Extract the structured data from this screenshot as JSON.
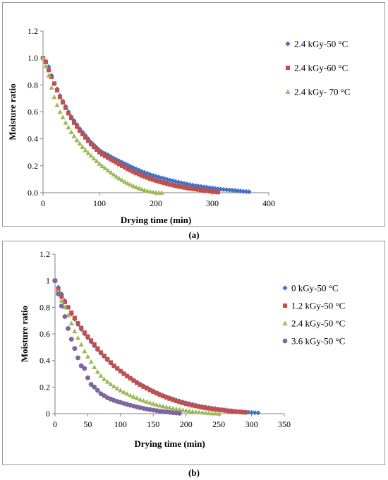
{
  "chart_data": [
    {
      "id": "a",
      "type": "scatter",
      "caption": "(a)",
      "xlabel": "Drying time (min)",
      "ylabel": "Moisture ratio",
      "xlim": [
        0,
        400
      ],
      "ylim": [
        0,
        1.2
      ],
      "xticks": [
        "0",
        "100",
        "200",
        "300",
        "400"
      ],
      "yticks": [
        "0.0",
        "0.2",
        "0.4",
        "0.6",
        "0.8",
        "1.0",
        "1.2"
      ],
      "grid": false,
      "legend_position": "top-right",
      "series": [
        {
          "name": "2.4 kGy-50 °C",
          "marker": "diamond",
          "color": "#4472c4",
          "x": [
            0,
            5,
            10,
            15,
            20,
            25,
            30,
            35,
            40,
            45,
            50,
            55,
            60,
            65,
            70,
            75,
            80,
            85,
            90,
            95,
            100,
            105,
            110,
            115,
            120,
            125,
            130,
            135,
            140,
            145,
            150,
            155,
            160,
            165,
            170,
            175,
            180,
            185,
            190,
            195,
            200,
            205,
            210,
            215,
            220,
            225,
            230,
            235,
            240,
            245,
            250,
            255,
            260,
            265,
            270,
            275,
            280,
            285,
            290,
            295,
            300,
            305,
            310,
            315,
            320,
            325,
            330,
            335,
            340,
            345,
            350,
            355,
            360,
            365
          ],
          "y": [
            1.0,
            0.975,
            0.935,
            0.87,
            0.81,
            0.77,
            0.72,
            0.68,
            0.64,
            0.6,
            0.565,
            0.535,
            0.505,
            0.475,
            0.45,
            0.425,
            0.4,
            0.375,
            0.355,
            0.335,
            0.315,
            0.3,
            0.29,
            0.28,
            0.268,
            0.256,
            0.245,
            0.235,
            0.225,
            0.215,
            0.205,
            0.195,
            0.185,
            0.176,
            0.167,
            0.158,
            0.15,
            0.142,
            0.135,
            0.128,
            0.122,
            0.116,
            0.11,
            0.104,
            0.098,
            0.093,
            0.088,
            0.083,
            0.078,
            0.073,
            0.068,
            0.064,
            0.06,
            0.056,
            0.052,
            0.049,
            0.046,
            0.043,
            0.04,
            0.037,
            0.034,
            0.031,
            0.028,
            0.026,
            0.024,
            0.022,
            0.02,
            0.018,
            0.016,
            0.014,
            0.012,
            0.01,
            0.008,
            0.007
          ]
        },
        {
          "name": "2.4 kGy-60 °C",
          "marker": "square",
          "color": "#c0504d",
          "x": [
            0,
            5,
            10,
            15,
            20,
            25,
            30,
            35,
            40,
            45,
            50,
            55,
            60,
            65,
            70,
            75,
            80,
            85,
            90,
            95,
            100,
            105,
            110,
            115,
            120,
            125,
            130,
            135,
            140,
            145,
            150,
            155,
            160,
            165,
            170,
            175,
            180,
            185,
            190,
            195,
            200,
            205,
            210,
            215,
            220,
            225,
            230,
            235,
            240,
            245,
            250,
            255,
            260,
            265,
            270,
            275,
            280,
            285,
            290,
            295,
            300,
            305,
            310
          ],
          "y": [
            1.0,
            0.97,
            0.91,
            0.86,
            0.81,
            0.76,
            0.71,
            0.67,
            0.63,
            0.59,
            0.555,
            0.52,
            0.49,
            0.46,
            0.435,
            0.41,
            0.385,
            0.36,
            0.34,
            0.32,
            0.3,
            0.285,
            0.272,
            0.26,
            0.248,
            0.236,
            0.224,
            0.212,
            0.2,
            0.188,
            0.177,
            0.166,
            0.156,
            0.146,
            0.137,
            0.128,
            0.12,
            0.112,
            0.104,
            0.097,
            0.09,
            0.084,
            0.078,
            0.072,
            0.066,
            0.061,
            0.056,
            0.051,
            0.047,
            0.043,
            0.039,
            0.035,
            0.032,
            0.029,
            0.026,
            0.023,
            0.02,
            0.017,
            0.014,
            0.011,
            0.008,
            0.006,
            0.004
          ]
        },
        {
          "name": "2.4 kGy- 70 °C",
          "marker": "triangle",
          "color": "#9bbb59",
          "x": [
            0,
            5,
            10,
            15,
            20,
            25,
            30,
            35,
            40,
            45,
            50,
            55,
            60,
            65,
            70,
            75,
            80,
            85,
            90,
            95,
            100,
            105,
            110,
            115,
            120,
            125,
            130,
            135,
            140,
            145,
            150,
            155,
            160,
            165,
            170,
            175,
            180,
            185,
            190,
            195,
            200,
            205,
            210
          ],
          "y": [
            1.0,
            0.94,
            0.87,
            0.78,
            0.71,
            0.65,
            0.6,
            0.56,
            0.52,
            0.485,
            0.45,
            0.42,
            0.39,
            0.365,
            0.34,
            0.315,
            0.295,
            0.275,
            0.255,
            0.235,
            0.215,
            0.198,
            0.182,
            0.166,
            0.15,
            0.135,
            0.12,
            0.106,
            0.093,
            0.081,
            0.07,
            0.06,
            0.05,
            0.041,
            0.033,
            0.026,
            0.02,
            0.014,
            0.009,
            0.005,
            0.002,
            0.001,
            0.0
          ]
        }
      ]
    },
    {
      "id": "b",
      "type": "scatter",
      "caption": "(b)",
      "xlabel": "Drying time (min)",
      "ylabel": "Moisture ratio",
      "xlim": [
        0,
        350
      ],
      "ylim": [
        0,
        1.2
      ],
      "xticks": [
        "0",
        "50",
        "100",
        "150",
        "200",
        "250",
        "300",
        "350"
      ],
      "yticks": [
        "0",
        "0.2",
        "0.4",
        "0.6",
        "0.8",
        "1",
        "1.2"
      ],
      "grid": false,
      "legend_position": "top-right",
      "series": [
        {
          "name": "0 kGy-50 °C",
          "marker": "diamond",
          "color": "#4472c4",
          "x": [
            0,
            5,
            10,
            15,
            20,
            25,
            30,
            35,
            40,
            45,
            50,
            55,
            60,
            65,
            70,
            75,
            80,
            85,
            90,
            95,
            100,
            105,
            110,
            115,
            120,
            125,
            130,
            135,
            140,
            145,
            150,
            155,
            160,
            165,
            170,
            175,
            180,
            185,
            190,
            195,
            200,
            205,
            210,
            215,
            220,
            225,
            230,
            235,
            240,
            245,
            250,
            255,
            260,
            265,
            270,
            275,
            280,
            285,
            290,
            295,
            300,
            305,
            310
          ],
          "y": [
            1.0,
            0.95,
            0.9,
            0.85,
            0.8,
            0.75,
            0.71,
            0.67,
            0.635,
            0.6,
            0.57,
            0.54,
            0.51,
            0.48,
            0.455,
            0.43,
            0.405,
            0.38,
            0.36,
            0.34,
            0.32,
            0.302,
            0.285,
            0.268,
            0.252,
            0.237,
            0.222,
            0.208,
            0.195,
            0.182,
            0.17,
            0.158,
            0.147,
            0.137,
            0.127,
            0.118,
            0.11,
            0.102,
            0.095,
            0.088,
            0.081,
            0.075,
            0.069,
            0.063,
            0.058,
            0.053,
            0.049,
            0.045,
            0.041,
            0.037,
            0.034,
            0.031,
            0.028,
            0.025,
            0.022,
            0.019,
            0.017,
            0.015,
            0.013,
            0.011,
            0.009,
            0.007,
            0.006
          ]
        },
        {
          "name": "1.2 kGy-50 °C",
          "marker": "square",
          "color": "#c0504d",
          "x": [
            0,
            5,
            10,
            15,
            20,
            25,
            30,
            35,
            40,
            45,
            50,
            55,
            60,
            65,
            70,
            75,
            80,
            85,
            90,
            95,
            100,
            105,
            110,
            115,
            120,
            125,
            130,
            135,
            140,
            145,
            150,
            155,
            160,
            165,
            170,
            175,
            180,
            185,
            190,
            195,
            200,
            205,
            210,
            215,
            220,
            225,
            230,
            235,
            240,
            245,
            250,
            255,
            260,
            265,
            270,
            275,
            280,
            285,
            290
          ],
          "y": [
            1.0,
            0.93,
            0.88,
            0.84,
            0.8,
            0.76,
            0.72,
            0.68,
            0.645,
            0.61,
            0.58,
            0.55,
            0.52,
            0.49,
            0.46,
            0.435,
            0.41,
            0.385,
            0.36,
            0.34,
            0.32,
            0.3,
            0.282,
            0.265,
            0.248,
            0.232,
            0.217,
            0.203,
            0.19,
            0.177,
            0.165,
            0.153,
            0.142,
            0.132,
            0.122,
            0.113,
            0.104,
            0.096,
            0.088,
            0.081,
            0.074,
            0.068,
            0.062,
            0.057,
            0.052,
            0.047,
            0.043,
            0.039,
            0.035,
            0.032,
            0.029,
            0.026,
            0.023,
            0.02,
            0.017,
            0.015,
            0.013,
            0.011,
            0.009
          ]
        },
        {
          "name": "2.4 kGy-50 °C",
          "marker": "triangle",
          "color": "#9bbb59",
          "x": [
            0,
            5,
            10,
            15,
            20,
            25,
            30,
            35,
            40,
            45,
            50,
            55,
            60,
            65,
            70,
            75,
            80,
            85,
            90,
            95,
            100,
            105,
            110,
            115,
            120,
            125,
            130,
            135,
            140,
            145,
            150,
            155,
            160,
            165,
            170,
            175,
            180,
            185,
            190,
            195,
            200,
            205,
            210,
            215,
            220,
            225,
            230,
            235,
            240,
            245,
            250
          ],
          "y": [
            1.0,
            0.92,
            0.85,
            0.8,
            0.74,
            0.68,
            0.62,
            0.57,
            0.52,
            0.47,
            0.43,
            0.39,
            0.35,
            0.315,
            0.285,
            0.26,
            0.24,
            0.222,
            0.205,
            0.19,
            0.175,
            0.162,
            0.15,
            0.138,
            0.127,
            0.117,
            0.107,
            0.098,
            0.09,
            0.082,
            0.075,
            0.068,
            0.062,
            0.056,
            0.05,
            0.045,
            0.04,
            0.035,
            0.031,
            0.027,
            0.023,
            0.02,
            0.017,
            0.014,
            0.011,
            0.009,
            0.007,
            0.005,
            0.003,
            0.002,
            0.001
          ]
        },
        {
          "name": "3.6 kGy-50 °C",
          "marker": "circle",
          "color": "#8064a2",
          "x": [
            0,
            5,
            10,
            15,
            20,
            25,
            30,
            35,
            40,
            45,
            50,
            55,
            60,
            65,
            70,
            75,
            80,
            85,
            90,
            95,
            100,
            105,
            110,
            115,
            120,
            125,
            130,
            135,
            140,
            145,
            150,
            155,
            160,
            165,
            170,
            175,
            180,
            185,
            190
          ],
          "y": [
            1.0,
            0.9,
            0.81,
            0.73,
            0.64,
            0.56,
            0.49,
            0.42,
            0.36,
            0.34,
            0.27,
            0.22,
            0.2,
            0.175,
            0.15,
            0.135,
            0.12,
            0.11,
            0.1,
            0.092,
            0.085,
            0.077,
            0.07,
            0.063,
            0.057,
            0.051,
            0.045,
            0.04,
            0.035,
            0.031,
            0.027,
            0.023,
            0.019,
            0.016,
            0.013,
            0.01,
            0.007,
            0.005,
            0.003
          ]
        }
      ]
    }
  ]
}
